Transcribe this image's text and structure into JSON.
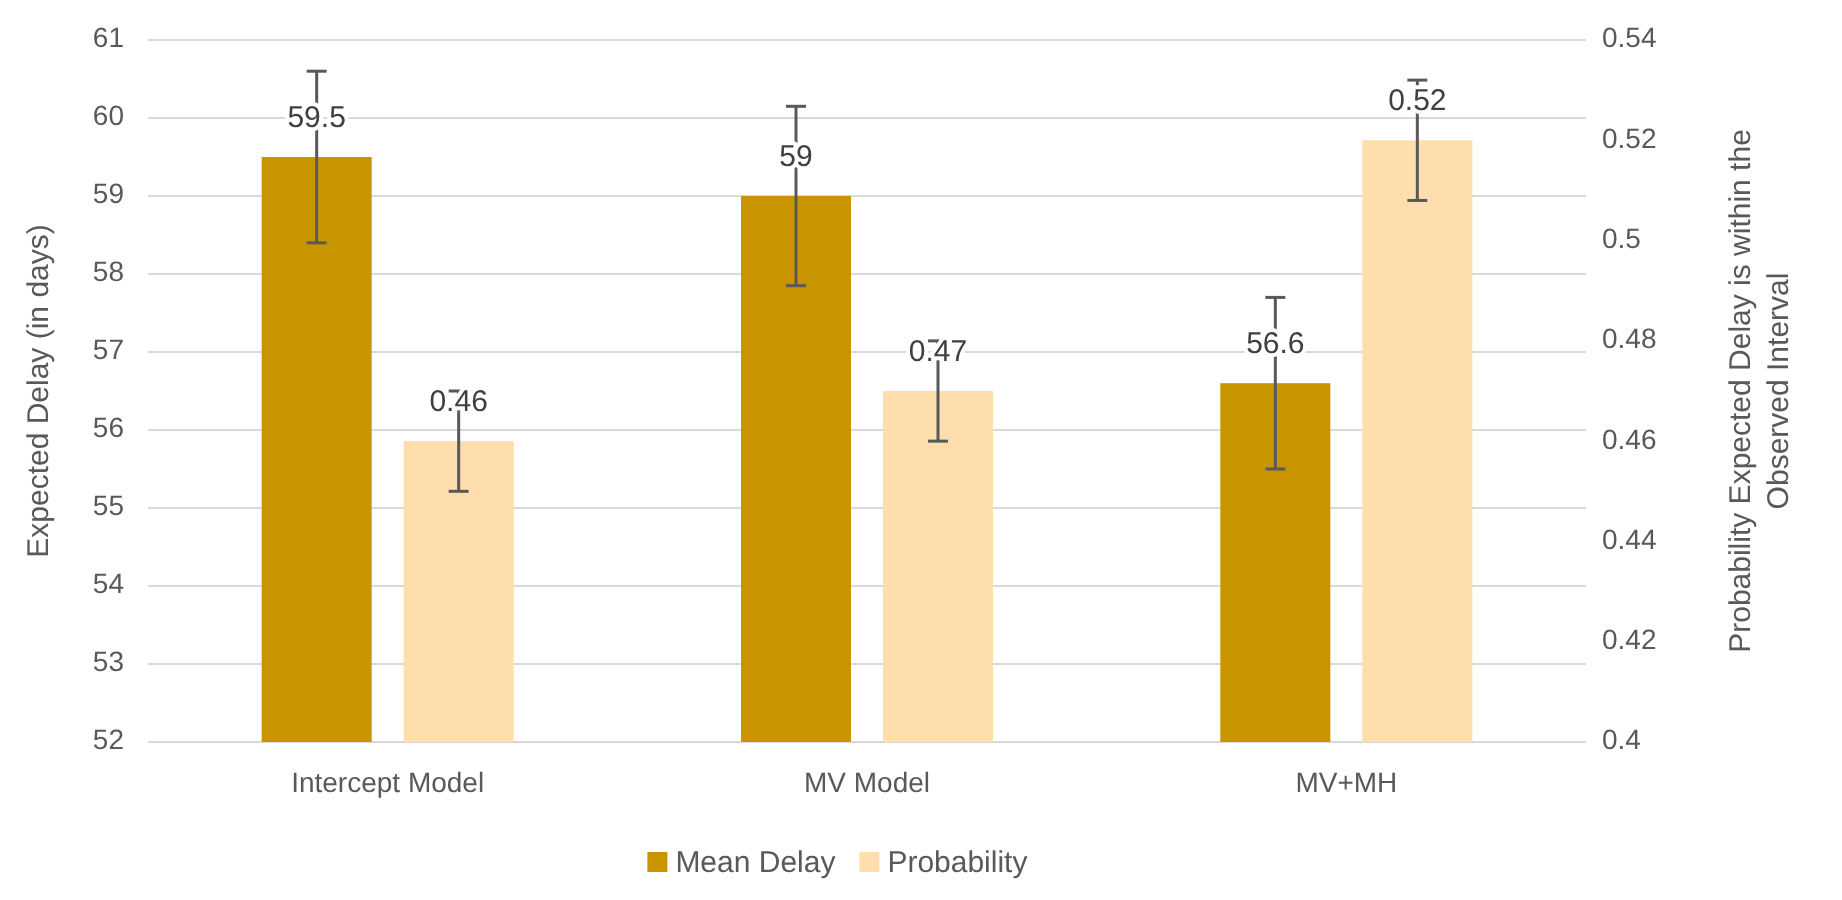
{
  "chart_data": {
    "type": "bar",
    "categories": [
      "Intercept Model",
      "MV Model",
      "MV+MH"
    ],
    "series": [
      {
        "name": "Mean Delay",
        "color": "#c89500",
        "values": [
          59.5,
          59,
          56.6
        ],
        "errors": [
          1.1,
          1.15,
          1.1
        ]
      },
      {
        "name": "Probability",
        "color": "#ffdeae",
        "values": [
          0.46,
          0.47,
          0.52
        ],
        "errors": [
          0.01,
          0.01,
          0.012
        ],
        "axis": "y2"
      }
    ],
    "ylabel": "Expected Delay (in days)",
    "y2label": "Probability Expected Delay is within the Observed Interval",
    "ylim": [
      52,
      61
    ],
    "yticks": [
      52,
      53,
      54,
      55,
      56,
      57,
      58,
      59,
      60,
      61
    ],
    "y2lim": [
      0.4,
      0.54
    ],
    "y2ticks": [
      {
        "value": 0.4,
        "label": "0.4"
      },
      {
        "value": 0.42,
        "label": "0.42"
      },
      {
        "value": 0.44,
        "label": "0.44"
      },
      {
        "value": 0.46,
        "label": "0.46"
      },
      {
        "value": 0.48,
        "label": "0.48"
      },
      {
        "value": 0.5,
        "label": "0.5"
      },
      {
        "value": 0.52,
        "label": "0.52"
      },
      {
        "value": 0.54,
        "label": "0.54"
      }
    ],
    "grid": "y",
    "legend": "bottom",
    "data_labels": true
  }
}
